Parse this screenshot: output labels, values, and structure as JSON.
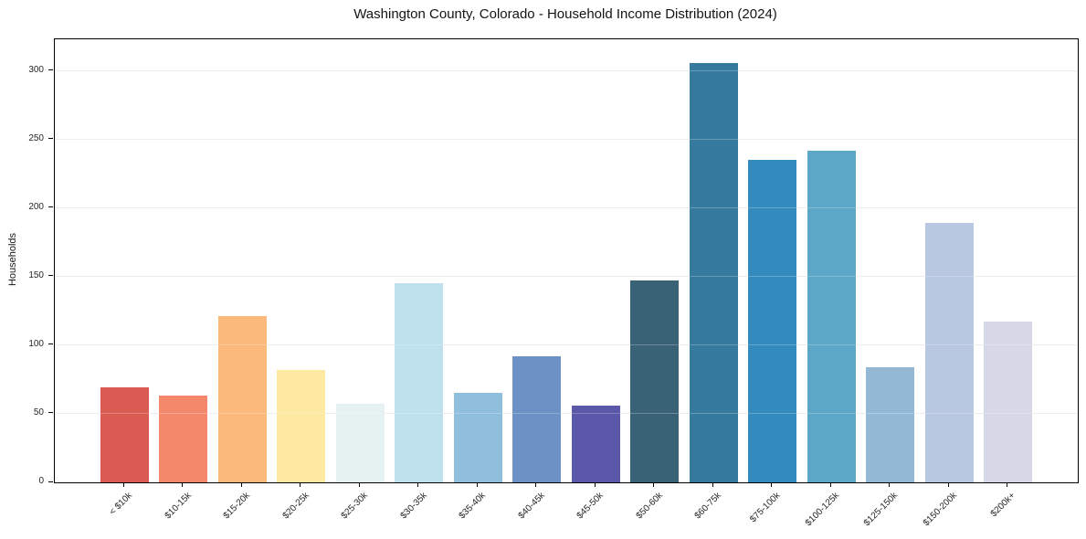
{
  "chart_data": {
    "type": "bar",
    "title": "Washington County, Colorado - Household Income Distribution (2024)",
    "xlabel": "",
    "ylabel": "Households",
    "categories": [
      "< $10k",
      "$10-15k",
      "$15-20k",
      "$20-25k",
      "$25-30k",
      "$30-35k",
      "$35-40k",
      "$40-45k",
      "$45-50k",
      "$50-60k",
      "$60-75k",
      "$75-100k",
      "$100-125k",
      "$125-150k",
      "$150-200k",
      "$200k+"
    ],
    "values": [
      69,
      63,
      121,
      82,
      57,
      145,
      65,
      92,
      56,
      147,
      306,
      235,
      242,
      84,
      189,
      117
    ],
    "bar_colors": [
      "#d95b52",
      "#f4886b",
      "#fbb97b",
      "#fde9a2",
      "#e6f2f1",
      "#bee1ed",
      "#90bedd",
      "#6c92c5",
      "#5b58a9",
      "#3a6277",
      "#35799e",
      "#338abd",
      "#5ca6c7",
      "#92b8d6",
      "#b8c8e0",
      "#d6d8e6"
    ],
    "yticks": [
      0,
      50,
      100,
      150,
      200,
      250,
      300
    ],
    "ylim": [
      0,
      323
    ],
    "grid": "horizontal",
    "legend_position": "none"
  },
  "colors": {
    "background": "#ffffff",
    "spine": "#000000",
    "gridline": "#e7e7e7",
    "title_text": "#141414",
    "tick_text": "#262626"
  }
}
